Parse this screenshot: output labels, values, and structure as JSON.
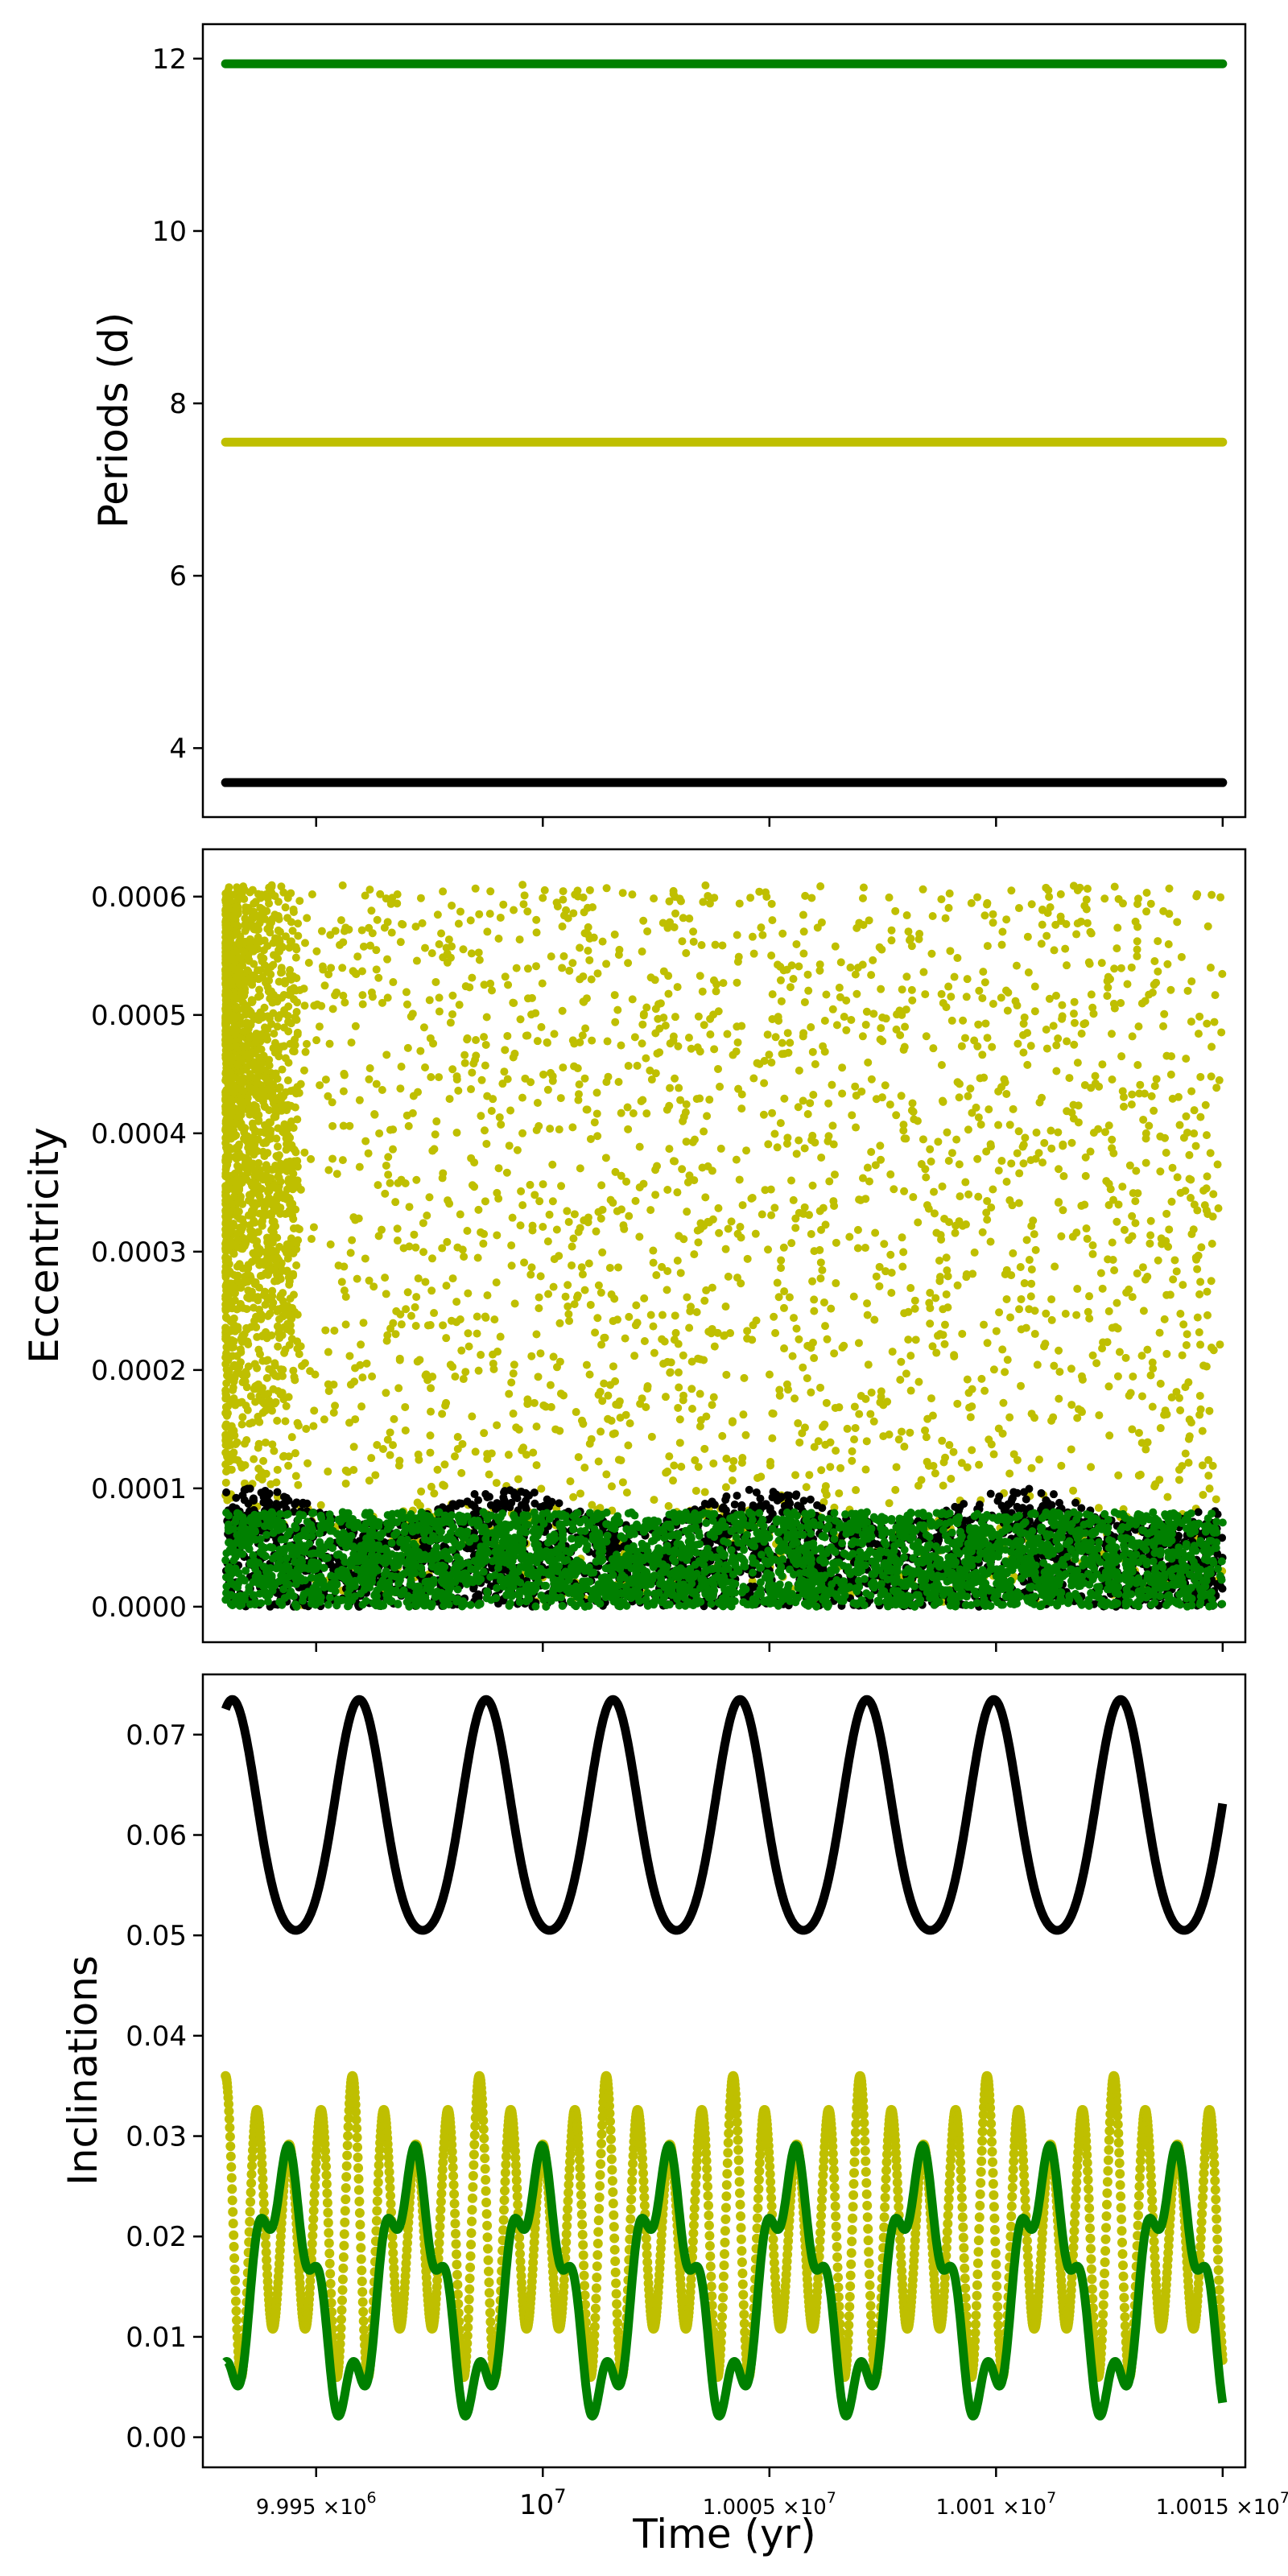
{
  "colors": {
    "black": "#000000",
    "olive": "#bfbf00",
    "green": "#008000"
  },
  "chart_data": [
    {
      "type": "scatter",
      "ylabel": "Periods (d)",
      "xlabel": "",
      "xlim": [
        9992500,
        10015500
      ],
      "ylim": [
        3.2,
        12.4
      ],
      "yticks": [
        4,
        6,
        8,
        10,
        12
      ],
      "ytick_labels": [
        "4",
        "6",
        "8",
        "10",
        "12"
      ],
      "x_tick_labels_shown": false,
      "series": [
        {
          "color": "#008000",
          "x_range": [
            9993000,
            10015000
          ],
          "y": 11.94
        },
        {
          "color": "#bfbf00",
          "x_range": [
            9993000,
            10015000
          ],
          "y": 7.55
        },
        {
          "color": "#000000",
          "x_range": [
            9993000,
            10015000
          ],
          "y": 3.6
        }
      ]
    },
    {
      "type": "scatter",
      "ylabel": "Eccentricity",
      "xlabel": "",
      "xlim": [
        9992500,
        10015500
      ],
      "ylim": [
        -3e-05,
        0.00064
      ],
      "yticks": [
        0.0,
        0.0001,
        0.0002,
        0.0003,
        0.0004,
        0.0005,
        0.0006
      ],
      "ytick_labels": [
        "0.0000",
        "0.0001",
        "0.0002",
        "0.0003",
        "0.0004",
        "0.0005",
        "0.0006"
      ],
      "x_tick_labels_shown": false,
      "series": [
        {
          "color": "#bfbf00",
          "x_range": [
            9993000,
            10015000
          ],
          "y_range": [
            0.0,
            0.00061
          ]
        },
        {
          "color": "#000000",
          "x_range": [
            9993000,
            10015000
          ],
          "y_range": [
            0.0,
            0.0001
          ]
        },
        {
          "color": "#008000",
          "x_range": [
            9993000,
            10015000
          ],
          "y_range": [
            0.0,
            8e-05
          ]
        }
      ]
    },
    {
      "type": "line",
      "ylabel": "Inclinations",
      "xlabel": "Time (yr)",
      "xlim": [
        9992500,
        10015500
      ],
      "ylim": [
        -0.003,
        0.076
      ],
      "yticks": [
        0.0,
        0.01,
        0.02,
        0.03,
        0.04,
        0.05,
        0.06,
        0.07
      ],
      "ytick_labels": [
        "0.00",
        "0.01",
        "0.02",
        "0.03",
        "0.04",
        "0.05",
        "0.06",
        "0.07"
      ],
      "xticks": [
        9995000,
        10000000,
        10005000,
        10010000,
        10015000
      ],
      "xtick_labels": [
        {
          "mantissa": "9.995",
          "exp": "6"
        },
        {
          "base": "10",
          "exp": "7"
        },
        {
          "mantissa": "1.0005",
          "exp": "7"
        },
        {
          "mantissa": "1.001",
          "exp": "7"
        },
        {
          "mantissa": "1.0015",
          "exp": "7"
        }
      ],
      "xtick_times": "×10",
      "series": [
        {
          "color": "#000000",
          "x_range": [
            9993000,
            10015000
          ],
          "y_range": [
            0.048,
            0.073
          ],
          "period_yr": 2800
        },
        {
          "color": "#bfbf00",
          "x_range": [
            9993000,
            10015000
          ],
          "y_range": [
            0.005,
            0.036
          ],
          "period_yr": 700
        },
        {
          "color": "#008000",
          "x_range": [
            9993000,
            10015000
          ],
          "y_range": [
            0.002,
            0.028
          ],
          "period_yr": 2800
        }
      ]
    }
  ]
}
